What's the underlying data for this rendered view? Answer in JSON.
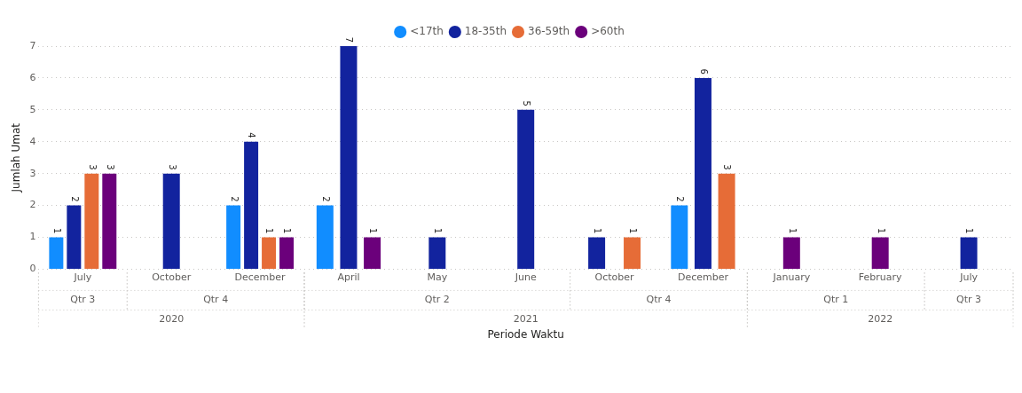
{
  "chart_data": {
    "type": "bar",
    "xlabel": "Periode Waktu",
    "ylabel": "Jumlah Umat",
    "categories": [
      "July",
      "October",
      "December",
      "April",
      "May",
      "June",
      "October",
      "December",
      "January",
      "February",
      "July"
    ],
    "series": [
      {
        "name": "<17th",
        "color": "#118dff",
        "values": [
          1,
          null,
          2,
          2,
          null,
          null,
          null,
          2,
          null,
          null,
          null
        ]
      },
      {
        "name": "18-35th",
        "color": "#12239e",
        "values": [
          2,
          3,
          4,
          7,
          1,
          5,
          1,
          6,
          null,
          null,
          1
        ]
      },
      {
        "name": "36-59th",
        "color": "#e66c37",
        "values": [
          3,
          null,
          1,
          null,
          null,
          null,
          1,
          3,
          null,
          null,
          null
        ]
      },
      {
        "name": ">60th",
        "color": "#6b007b",
        "values": [
          3,
          null,
          1,
          1,
          null,
          null,
          null,
          null,
          1,
          1,
          null
        ]
      }
    ],
    "ylim": [
      0,
      7
    ],
    "yticks": [
      0,
      1,
      2,
      3,
      4,
      5,
      6,
      7
    ],
    "grid": "y",
    "legend": "top",
    "data_labels": true,
    "annotations": [
      "Qtr 3",
      "Qtr 4",
      "Qtr 2",
      "Qtr 4",
      "Qtr 1",
      "Qtr 3",
      "2020",
      "2021",
      "2022"
    ]
  }
}
